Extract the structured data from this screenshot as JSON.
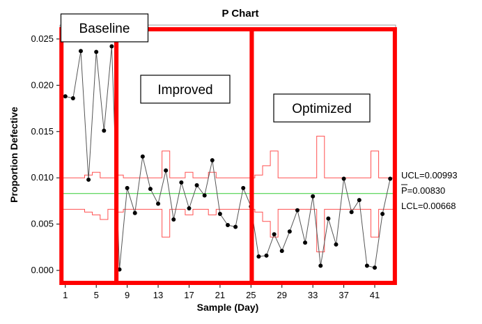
{
  "chart_data": {
    "type": "line",
    "title": "P Chart",
    "xlabel": "Sample (Day)",
    "ylabel": "Proportion Defective",
    "xlim": [
      0.3,
      43.7
    ],
    "ylim": [
      -0.0015,
      0.0265
    ],
    "x_ticks": [
      1,
      5,
      9,
      13,
      17,
      21,
      25,
      29,
      33,
      37,
      41
    ],
    "x_tick_labels": [
      "1",
      "5",
      "9",
      "13",
      "17",
      "21",
      "25",
      "29",
      "33",
      "37",
      "41"
    ],
    "y_ticks": [
      0.0,
      0.005,
      0.01,
      0.015,
      0.02,
      0.025
    ],
    "y_tick_labels": [
      "0.000",
      "0.005",
      "0.010",
      "0.015",
      "0.020",
      "0.025"
    ],
    "series": [
      {
        "name": "Proportion Defective",
        "x": [
          1,
          2,
          3,
          4,
          5,
          6,
          7,
          8,
          9,
          10,
          11,
          12,
          13,
          14,
          15,
          16,
          17,
          18,
          19,
          20,
          21,
          22,
          23,
          24,
          25,
          26,
          27,
          28,
          29,
          30,
          31,
          32,
          33,
          34,
          35,
          36,
          37,
          38,
          39,
          40,
          41,
          42,
          43
        ],
        "values": [
          0.0188,
          0.0186,
          0.0237,
          0.0098,
          0.0236,
          0.0151,
          0.0242,
          0.0001,
          0.0089,
          0.0062,
          0.0123,
          0.0088,
          0.0072,
          0.0108,
          0.0055,
          0.0095,
          0.0067,
          0.0092,
          0.0081,
          0.0119,
          0.0061,
          0.0049,
          0.0047,
          0.0089,
          0.0069,
          0.0015,
          0.0016,
          0.0039,
          0.0021,
          0.0042,
          0.0065,
          0.003,
          0.008,
          0.0005,
          0.0056,
          0.0028,
          0.0099,
          0.0063,
          0.0076,
          0.0005,
          0.0003,
          0.0061,
          0.0099
        ]
      }
    ],
    "center_line": 0.0083,
    "ucl_steps": [
      0.01,
      0.01,
      0.01,
      0.0103,
      0.0106,
      0.01,
      0.01,
      0.0103,
      0.01,
      0.01,
      0.01,
      0.01,
      0.01,
      0.0129,
      0.01,
      0.01,
      0.0106,
      0.01,
      0.01,
      0.0106,
      0.01,
      0.01,
      0.01,
      0.01,
      0.01,
      0.0103,
      0.0113,
      0.0129,
      0.01,
      0.01,
      0.01,
      0.01,
      0.01,
      0.0145,
      0.01,
      0.01,
      0.01,
      0.01,
      0.01,
      0.01,
      0.0129,
      0.01,
      0.01
    ],
    "lcl_steps": [
      0.0066,
      0.0066,
      0.0066,
      0.0063,
      0.006,
      0.0055,
      0.0066,
      0.0063,
      0.0066,
      0.0066,
      0.0066,
      0.0066,
      0.0066,
      0.0036,
      0.0066,
      0.0066,
      0.006,
      0.0066,
      0.0066,
      0.006,
      0.0066,
      0.0066,
      0.0066,
      0.0066,
      0.0066,
      0.0063,
      0.0053,
      0.0036,
      0.0066,
      0.0066,
      0.0066,
      0.0066,
      0.0066,
      0.002,
      0.0066,
      0.0066,
      0.0066,
      0.0066,
      0.0066,
      0.0066,
      0.0036,
      0.0066,
      0.0066
    ],
    "limit_labels": {
      "ucl": "UCL=0.00993",
      "p": "P=0.00830",
      "lcl": "LCL=0.00668"
    },
    "phases": [
      {
        "name": "Baseline",
        "x_start": 0.5,
        "x_end": 7.6
      },
      {
        "name": "Improved",
        "x_start": 7.6,
        "x_end": 25.1
      },
      {
        "name": "Optimized",
        "x_start": 25.1,
        "x_end": 43.6
      }
    ],
    "colors": {
      "data": "#555555",
      "marker": "#000000",
      "limits": "#ff5050",
      "center": "#33cc33",
      "phase": "#ff0000",
      "background": "#ffffff"
    }
  }
}
